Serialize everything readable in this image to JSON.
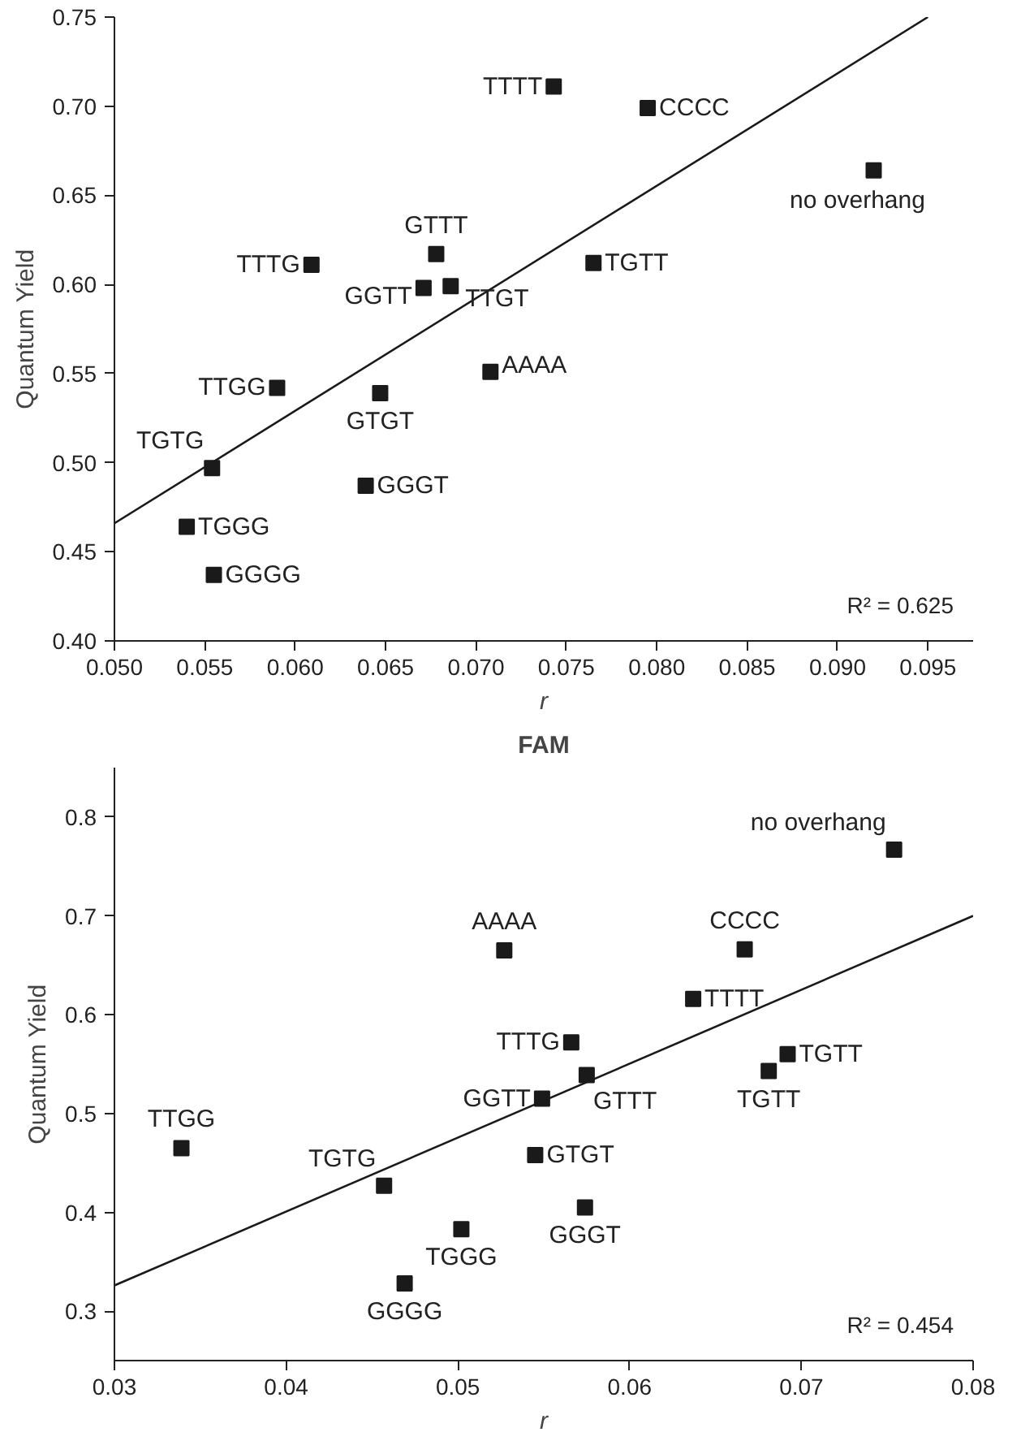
{
  "chart_data": [
    {
      "type": "scatter",
      "xlabel": "r",
      "ylabel": "Quantum Yield",
      "grid": false,
      "xlim": [
        0.05,
        0.0975
      ],
      "ylim": [
        0.4,
        0.75
      ],
      "xticks": [
        {
          "value": 0.05,
          "label": "0.050"
        },
        {
          "value": 0.055,
          "label": "0.055"
        },
        {
          "value": 0.06,
          "label": "0.060"
        },
        {
          "value": 0.065,
          "label": "0.065"
        },
        {
          "value": 0.07,
          "label": "0.070"
        },
        {
          "value": 0.075,
          "label": "0.075"
        },
        {
          "value": 0.08,
          "label": "0.080"
        },
        {
          "value": 0.085,
          "label": "0.085"
        },
        {
          "value": 0.09,
          "label": "0.090"
        },
        {
          "value": 0.095,
          "label": "0.095"
        }
      ],
      "yticks": [
        {
          "value": 0.4,
          "label": "0.40"
        },
        {
          "value": 0.45,
          "label": "0.45"
        },
        {
          "value": 0.5,
          "label": "0.50"
        },
        {
          "value": 0.55,
          "label": "0.55"
        },
        {
          "value": 0.6,
          "label": "0.60"
        },
        {
          "value": 0.65,
          "label": "0.65"
        },
        {
          "value": 0.7,
          "label": "0.70"
        },
        {
          "value": 0.75,
          "label": "0.75"
        }
      ],
      "series": [
        {
          "marker": "square",
          "color": "#1a1a1a",
          "x": [
            0.0743,
            0.0795,
            0.092,
            0.0678,
            0.0609,
            0.0671,
            0.0686,
            0.0765,
            0.0708,
            0.059,
            0.0647,
            0.0554,
            0.0639,
            0.054,
            0.0555
          ],
          "values": [
            0.711,
            0.699,
            0.664,
            0.617,
            0.611,
            0.598,
            0.599,
            0.612,
            0.551,
            0.542,
            0.539,
            0.497,
            0.487,
            0.464,
            0.437
          ]
        },
        {
          "type": "line",
          "color": "#1a1a1a",
          "x": [
            0.05,
            0.095
          ],
          "values": [
            0.466,
            0.75
          ]
        }
      ],
      "annotations": [
        {
          "text": "TTTT",
          "x": 0.0743,
          "y": 0.711
        },
        {
          "text": "CCCC",
          "x": 0.0795,
          "y": 0.699
        },
        {
          "text": "no overhang",
          "x": 0.092,
          "y": 0.664
        },
        {
          "text": "GTTT",
          "x": 0.0678,
          "y": 0.617
        },
        {
          "text": "TTTG",
          "x": 0.0609,
          "y": 0.611
        },
        {
          "text": "GGTT",
          "x": 0.0671,
          "y": 0.598
        },
        {
          "text": "TTGT",
          "x": 0.0686,
          "y": 0.599
        },
        {
          "text": "TGTT",
          "x": 0.0765,
          "y": 0.612
        },
        {
          "text": "AAAA",
          "x": 0.0708,
          "y": 0.551
        },
        {
          "text": "TTGG",
          "x": 0.059,
          "y": 0.542
        },
        {
          "text": "GTGT",
          "x": 0.0647,
          "y": 0.539
        },
        {
          "text": "TGTG",
          "x": 0.0554,
          "y": 0.497
        },
        {
          "text": "GGGT",
          "x": 0.0639,
          "y": 0.487
        },
        {
          "text": "TGGG",
          "x": 0.054,
          "y": 0.464
        },
        {
          "text": "GGGG",
          "x": 0.0555,
          "y": 0.437
        },
        "R² = 0.625"
      ]
    },
    {
      "type": "scatter",
      "title": "FAM",
      "xlabel": "r",
      "ylabel": "Quantum Yield",
      "grid": false,
      "xlim": [
        0.03,
        0.08
      ],
      "ylim": [
        0.25,
        0.85
      ],
      "xticks": [
        0.03,
        0.04,
        0.05,
        0.06,
        0.07,
        0.08
      ],
      "yticks": [
        0.3,
        0.4,
        0.5,
        0.6,
        0.7,
        0.8
      ],
      "series": [
        {
          "marker": "square",
          "color": "#1a1a1a",
          "x": [
            0.0754,
            0.0527,
            0.0667,
            0.0637,
            0.0566,
            0.0575,
            0.0549,
            0.0692,
            0.0681,
            0.0339,
            0.0457,
            0.0545,
            0.0574,
            0.0502,
            0.0469
          ],
          "values": [
            0.767,
            0.665,
            0.666,
            0.616,
            0.572,
            0.539,
            0.515,
            0.56,
            0.543,
            0.465,
            0.427,
            0.458,
            0.405,
            0.383,
            0.328
          ]
        },
        {
          "type": "line",
          "color": "#1a1a1a",
          "x": [
            0.03,
            0.08
          ],
          "values": [
            0.326,
            0.7
          ]
        }
      ],
      "annotations": [
        {
          "text": "no overhang",
          "x": 0.0754,
          "y": 0.767
        },
        {
          "text": "AAAA",
          "x": 0.0527,
          "y": 0.665
        },
        {
          "text": "CCCC",
          "x": 0.0667,
          "y": 0.666
        },
        {
          "text": "TTTT",
          "x": 0.0637,
          "y": 0.616
        },
        {
          "text": "TTTG",
          "x": 0.0566,
          "y": 0.572
        },
        {
          "text": "GTTT",
          "x": 0.0575,
          "y": 0.539
        },
        {
          "text": "GGTT",
          "x": 0.0549,
          "y": 0.515
        },
        {
          "text": "TGTT",
          "x": 0.0692,
          "y": 0.56
        },
        {
          "text": "TGTT",
          "x": 0.0681,
          "y": 0.543
        },
        {
          "text": "TTGG",
          "x": 0.0339,
          "y": 0.465
        },
        {
          "text": "TGTG",
          "x": 0.0457,
          "y": 0.427
        },
        {
          "text": "GTGT",
          "x": 0.0545,
          "y": 0.458
        },
        {
          "text": "GGGT",
          "x": 0.0574,
          "y": 0.405
        },
        {
          "text": "TGGG",
          "x": 0.0502,
          "y": 0.383
        },
        {
          "text": "GGGG",
          "x": 0.0469,
          "y": 0.328
        },
        "R² = 0.454"
      ]
    }
  ]
}
